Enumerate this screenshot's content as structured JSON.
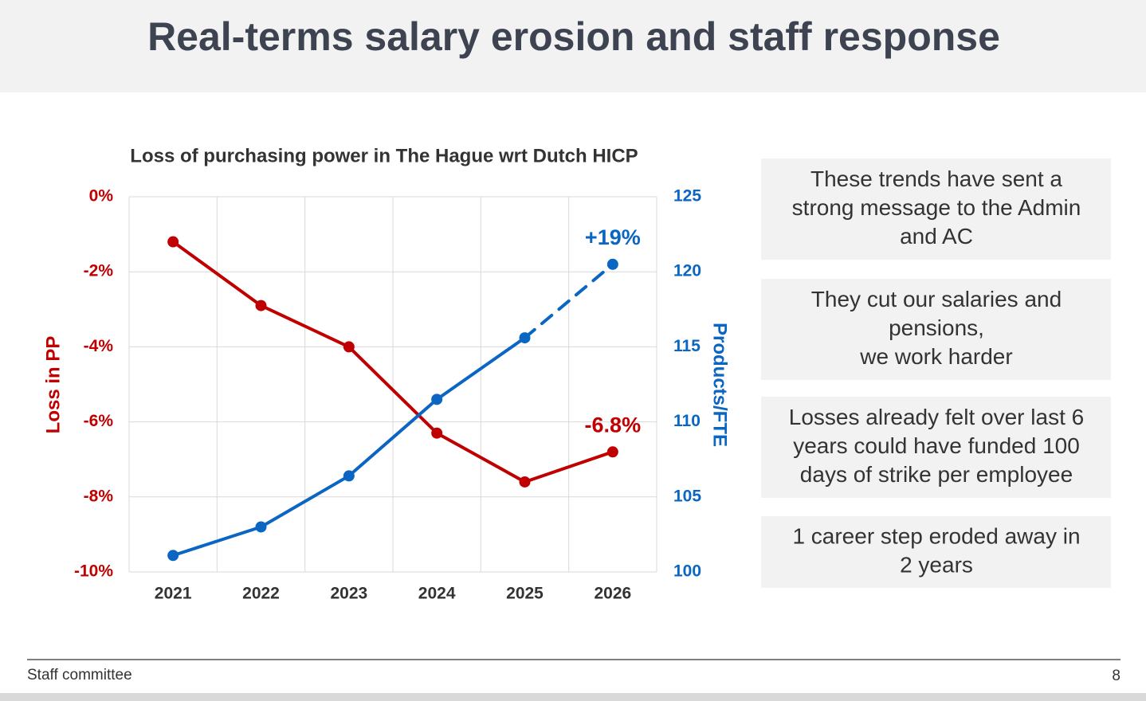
{
  "header": {
    "title": "Real-terms salary erosion and staff response"
  },
  "chart_data": {
    "type": "line",
    "title": "Loss of purchasing power in The Hague wrt Dutch HICP",
    "categories": [
      "2021",
      "2022",
      "2023",
      "2024",
      "2025",
      "2026"
    ],
    "ylabel": "Loss in PP",
    "y2label": "Products/FTE",
    "ylim": [
      -10,
      0
    ],
    "yticks": [
      {
        "value": -10,
        "label": "-10%"
      },
      {
        "value": -8,
        "label": "-8%"
      },
      {
        "value": -6,
        "label": "-6%"
      },
      {
        "value": -4,
        "label": "-4%"
      },
      {
        "value": -2,
        "label": "-2%"
      },
      {
        "value": 0,
        "label": "0%"
      }
    ],
    "y2lim": [
      100,
      125
    ],
    "y2ticks": [
      100,
      105,
      110,
      115,
      120,
      125
    ],
    "grid": true,
    "series": [
      {
        "color": "#c00000",
        "values": [
          -1.2,
          -2.9,
          -4.0,
          -6.3,
          -7.6,
          -6.8
        ],
        "value_labels": [
          null,
          null,
          null,
          null,
          null,
          "-6.8%"
        ],
        "dashed": [
          false,
          false,
          false,
          false,
          false,
          false
        ]
      },
      {
        "color": "#0a66c2",
        "axis": "y2",
        "values": [
          101.1,
          103.0,
          106.4,
          111.5,
          115.6,
          120.5
        ],
        "dashed": [
          false,
          false,
          false,
          false,
          false,
          true
        ]
      }
    ],
    "annotations": [
      "+19%"
    ]
  },
  "callouts": [
    [
      "These trends have sent a",
      "strong message to the Admin",
      "and AC"
    ],
    [
      "They cut our salaries and",
      "pensions,",
      "we work harder"
    ],
    [
      "Losses already felt over last 6",
      "years could have funded 100",
      "days of strike per employee"
    ],
    [
      "1 career step eroded away in",
      "2 years"
    ]
  ],
  "footer": {
    "left": "Staff committee",
    "page": "8"
  }
}
